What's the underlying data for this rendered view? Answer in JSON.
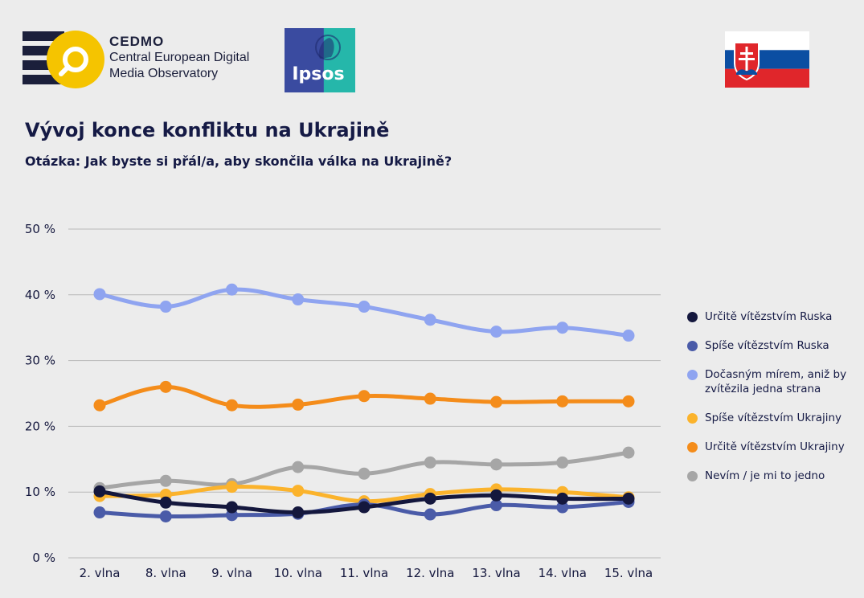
{
  "header": {
    "cedmo_name": "CEDMO",
    "cedmo_line1": "Central European Digital",
    "cedmo_line2": "Media Observatory",
    "ipsos_label": "Ipsos"
  },
  "colors": {
    "navy": "#151a45",
    "cedmo_yellow": "#f5c400",
    "ipsos_blue": "#3a4ba0",
    "ipsos_teal": "#25b7aa",
    "flag_white": "#ffffff",
    "flag_blue": "#0b4ea2",
    "flag_red": "#e0262b"
  },
  "chart_data": {
    "type": "line",
    "title": "Vývoj konce konfliktu na Ukrajině",
    "subtitle": "Otázka: Jak byste si přál/a, aby skončila válka na Ukrajině?",
    "categories": [
      "2. vlna",
      "8. vlna",
      "9. vlna",
      "10. vlna",
      "11. vlna",
      "12. vlna",
      "13. vlna",
      "14. vlna",
      "15. vlna"
    ],
    "ylim": [
      0,
      50
    ],
    "yticks": [
      0,
      10,
      20,
      30,
      40,
      50
    ],
    "ytick_labels": [
      "0 %",
      "10 %",
      "20 %",
      "30 %",
      "40 %",
      "50 %"
    ],
    "grid": true,
    "legend_position": "right",
    "series": [
      {
        "name": "Dočasným mírem, aniž by zvítězila jedna strana",
        "legend_lines": [
          "Dočasným mírem, aniž by",
          "zvítězila jedna strana"
        ],
        "color": "#8fa4f0",
        "values": [
          40.1,
          38.2,
          40.8,
          39.3,
          38.2,
          36.2,
          34.4,
          35.0,
          33.8
        ]
      },
      {
        "name": "Určitě vítězstvím Ukrajiny",
        "legend_lines": [
          "Určitě vítězstvím Ukrajiny"
        ],
        "color": "#f48c1a",
        "values": [
          23.2,
          26.0,
          23.2,
          23.3,
          24.6,
          24.2,
          23.7,
          23.8,
          23.8
        ]
      },
      {
        "name": "Nevím / je mi to jedno",
        "legend_lines": [
          "Nevím / je mi to jedno"
        ],
        "color": "#a6a6a6",
        "values": [
          10.6,
          11.7,
          11.2,
          13.8,
          12.8,
          14.5,
          14.2,
          14.5,
          16.0
        ]
      },
      {
        "name": "Spíše vítězstvím Ukrajiny",
        "legend_lines": [
          "Spíše vítězstvím Ukrajiny"
        ],
        "color": "#fbb32c",
        "values": [
          9.4,
          9.6,
          10.8,
          10.2,
          8.6,
          9.7,
          10.4,
          10.0,
          9.2
        ]
      },
      {
        "name": "Spíše vítězstvím Ruska",
        "legend_lines": [
          "Spíše vítězstvím Ruska"
        ],
        "color": "#4a5ba8",
        "values": [
          6.9,
          6.3,
          6.5,
          6.7,
          8.1,
          6.6,
          8.0,
          7.7,
          8.5
        ]
      },
      {
        "name": "Určitě vítězstvím Ruska",
        "legend_lines": [
          "Určitě vítězstvím Ruska"
        ],
        "color": "#14173d",
        "values": [
          10.1,
          8.4,
          7.7,
          6.9,
          7.7,
          9.0,
          9.5,
          9.0,
          9.0
        ]
      }
    ],
    "legend_order": [
      "Určitě vítězstvím Ruska",
      "Spíše vítězstvím Ruska",
      "Dočasným mírem, aniž by zvítězila jedna strana",
      "Spíše vítězstvím Ukrajiny",
      "Určitě vítězstvím Ukrajiny",
      "Nevím / je mi to jedno"
    ]
  }
}
